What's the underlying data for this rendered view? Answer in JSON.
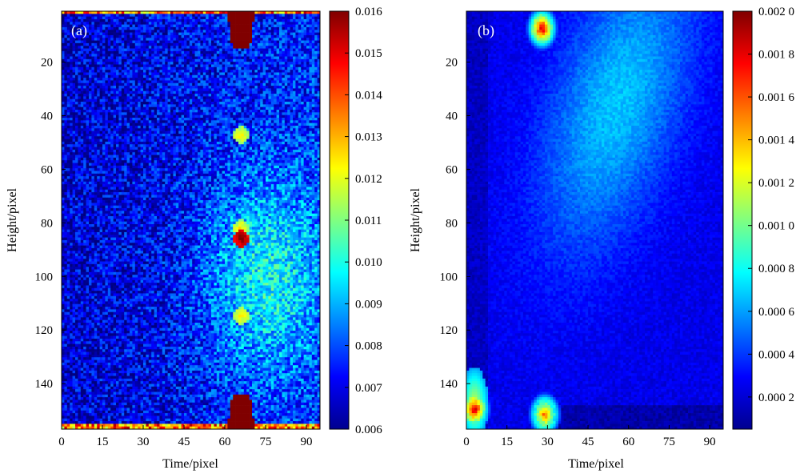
{
  "chart_data": [
    {
      "type": "heatmap",
      "panel_label": "(a)",
      "xlabel": "Time/pixel",
      "ylabel": "Height/pixel",
      "xlim": [
        0,
        95
      ],
      "ylim": [
        157,
        1
      ],
      "x_ticks": [
        "0",
        "15",
        "30",
        "45",
        "60",
        "75",
        "90"
      ],
      "x_tick_values": [
        0,
        15,
        30,
        45,
        60,
        75,
        90
      ],
      "y_ticks": [
        "20",
        "40",
        "60",
        "80",
        "100",
        "120",
        "140"
      ],
      "y_tick_values": [
        20,
        40,
        60,
        80,
        100,
        120,
        140
      ],
      "colorbar_range": [
        0.006,
        0.016
      ],
      "colorbar_ticks": [
        "0.016",
        "0.015",
        "0.014",
        "0.013",
        "0.012",
        "0.011",
        "0.010",
        "0.009",
        "0.008",
        "0.007",
        "0.006"
      ],
      "colorbar_tick_values": [
        0.016,
        0.015,
        0.014,
        0.013,
        0.012,
        0.011,
        0.01,
        0.009,
        0.008,
        0.007,
        0.006
      ],
      "colormap": "jet",
      "grid": false,
      "grid_size": [
        95,
        157
      ],
      "features": [
        {
          "kind": "saturated-blob",
          "x": [
            61,
            71
          ],
          "y": [
            1,
            14
          ],
          "value": 0.016
        },
        {
          "kind": "saturated-blob",
          "x": [
            61,
            71
          ],
          "y": [
            145,
            157
          ],
          "value": 0.016
        },
        {
          "kind": "spot",
          "x": 66,
          "y": 47,
          "value": 0.0125
        },
        {
          "kind": "spot",
          "x": 66,
          "y": 82,
          "value": 0.0125
        },
        {
          "kind": "spot",
          "x": 66,
          "y": 86,
          "value": 0.016
        },
        {
          "kind": "spot",
          "x": 66,
          "y": 115,
          "value": 0.0125
        },
        {
          "kind": "diffuse-region",
          "x": [
            40,
            95
          ],
          "y": [
            60,
            135
          ],
          "value": 0.0095
        }
      ]
    },
    {
      "type": "heatmap",
      "panel_label": "(b)",
      "xlabel": "Time/pixel",
      "ylabel": "Height/pixel",
      "xlim": [
        0,
        95
      ],
      "ylim": [
        157,
        1
      ],
      "x_ticks": [
        "0",
        "15",
        "30",
        "45",
        "60",
        "75",
        "90"
      ],
      "x_tick_values": [
        0,
        15,
        30,
        45,
        60,
        75,
        90
      ],
      "y_ticks": [
        "20",
        "40",
        "60",
        "80",
        "100",
        "120",
        "140"
      ],
      "y_tick_values": [
        20,
        40,
        60,
        80,
        100,
        120,
        140
      ],
      "colorbar_range": [
        5e-05,
        0.002
      ],
      "colorbar_ticks": [
        "0.002 0",
        "0.001 8",
        "0.001 6",
        "0.001 4",
        "0.001 2",
        "0.001 0",
        "0.000 8",
        "0.000 6",
        "0.000 4",
        "0.000 2"
      ],
      "colorbar_tick_values": [
        0.002,
        0.0018,
        0.0016,
        0.0014,
        0.0012,
        0.001,
        0.0008,
        0.0006,
        0.0004,
        0.0002
      ],
      "colormap": "jet",
      "grid": false,
      "grid_size": [
        95,
        157
      ],
      "features": [
        {
          "kind": "hot-blob",
          "x": 28,
          "y": 7,
          "value": 0.0019
        },
        {
          "kind": "hot-blob",
          "x": 3,
          "y": 150,
          "value": 0.0019
        },
        {
          "kind": "hot-blob",
          "x": 29,
          "y": 152,
          "value": 0.0016
        },
        {
          "kind": "diffuse-region",
          "x": [
            40,
            90
          ],
          "y": [
            10,
            80
          ],
          "value": 0.0006
        }
      ]
    }
  ]
}
